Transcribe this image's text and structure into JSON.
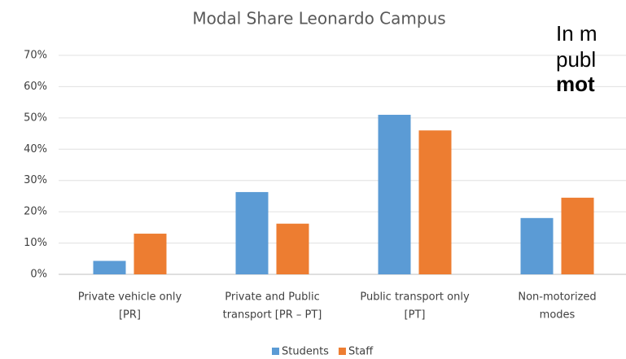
{
  "chart_data": {
    "type": "bar",
    "title": "Modal Share Leonardo Campus",
    "categories": [
      [
        "Private vehicle only",
        "[PR]"
      ],
      [
        "Private and Public",
        "transport [PR – PT]"
      ],
      [
        "Public transport only",
        "[PT]"
      ],
      [
        "Non-motorized",
        "modes"
      ]
    ],
    "series": [
      {
        "name": "Students",
        "color": "#5b9bd5",
        "values": [
          4.3,
          26.3,
          51,
          18
        ]
      },
      {
        "name": "Staff",
        "color": "#ed7d31",
        "values": [
          13,
          16.2,
          46,
          24.5
        ]
      }
    ],
    "ylim": [
      0,
      70
    ],
    "yticks": [
      {
        "value": 0,
        "label": "0%"
      },
      {
        "value": 10,
        "label": "10%"
      },
      {
        "value": 20,
        "label": "20%"
      },
      {
        "value": 30,
        "label": "30%"
      },
      {
        "value": 40,
        "label": "40%"
      },
      {
        "value": 50,
        "label": "50%"
      },
      {
        "value": 60,
        "label": "60%"
      },
      {
        "value": 70,
        "label": "70%"
      }
    ],
    "grid": true,
    "legend": "bottom"
  },
  "side_text": [
    "In m",
    "publ",
    "mot"
  ]
}
